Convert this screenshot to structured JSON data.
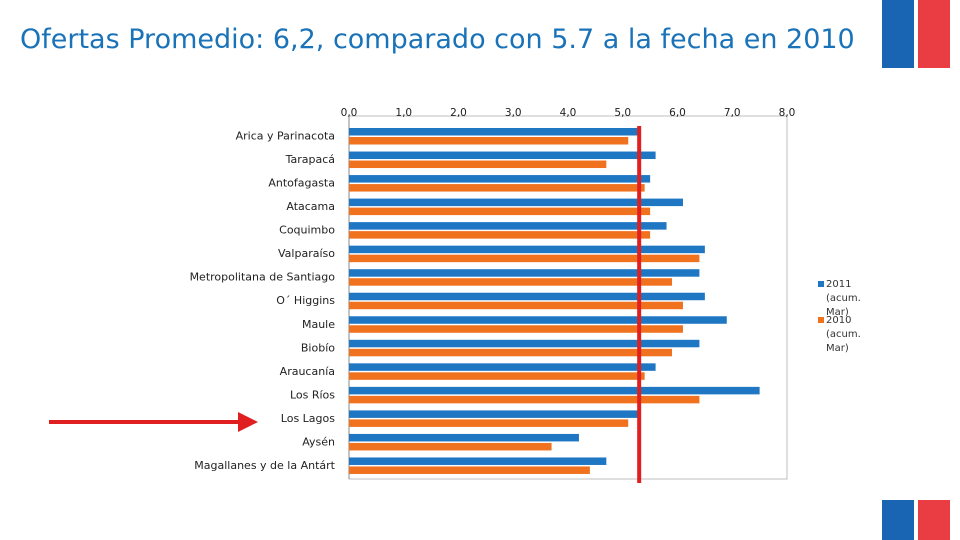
{
  "slide": {
    "title": "Ofertas Promedio: 6,2, comparado con 5.7 a la fecha en 2010"
  },
  "colors": {
    "series_2011": "#1f77c4",
    "series_2010": "#f0721f",
    "reference_line": "#e02020",
    "arrow": "#e02020",
    "title": "#1a73b8",
    "flag_blue": "#1a64b4",
    "flag_red": "#ea3c43"
  },
  "chart_data": {
    "type": "bar",
    "orientation": "horizontal",
    "categories": [
      "Arica y Parinacota",
      "Tarapacá",
      "Antofagasta",
      "Atacama",
      "Coquimbo",
      "Valparaíso",
      "Metropolitana de Santiago",
      "O´ Higgins",
      "Maule",
      "Biobío",
      "Araucanía",
      "Los Ríos",
      "Los Lagos",
      "Aysén",
      "Magallanes y de la Antárt"
    ],
    "series": [
      {
        "name": "2011 (acum. Mar)",
        "values": [
          5.3,
          5.6,
          5.5,
          6.1,
          5.8,
          6.5,
          6.4,
          6.5,
          6.9,
          6.4,
          5.6,
          7.5,
          5.3,
          4.2,
          4.7
        ]
      },
      {
        "name": "2010 (acum. Mar)",
        "values": [
          5.1,
          4.7,
          5.4,
          5.5,
          5.5,
          6.4,
          5.9,
          6.1,
          6.1,
          5.9,
          5.4,
          6.4,
          5.1,
          3.7,
          4.4
        ]
      }
    ],
    "xticks": [
      "0,0",
      "1,0",
      "2,0",
      "3,0",
      "4,0",
      "5,0",
      "6,0",
      "7,0",
      "8,0"
    ],
    "xlim": [
      0,
      8
    ],
    "xaxis_position": "top",
    "grid": false,
    "legend_position": "right",
    "reference_line_value": 5.3,
    "highlighted_category": "Los Lagos"
  }
}
